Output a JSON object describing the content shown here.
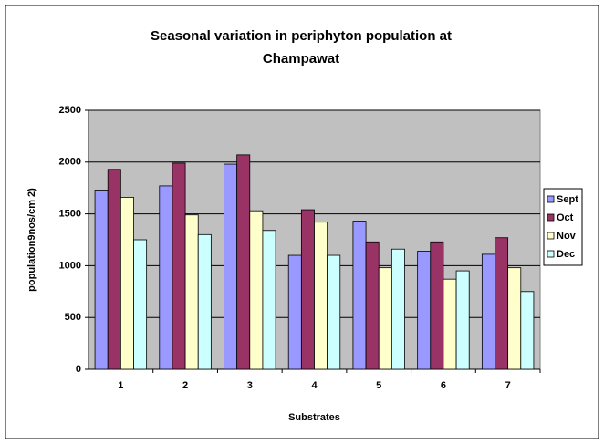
{
  "chart_data": {
    "type": "bar",
    "title": "Seasonal variation in periphyton population at Champawat",
    "x_label": "Substrates",
    "y_label": "population9nos/cm 2)",
    "categories": [
      "1",
      "2",
      "3",
      "4",
      "5",
      "6",
      "7"
    ],
    "series": [
      {
        "name": "Sept",
        "color": "#9999ff",
        "values": [
          1730,
          1770,
          1980,
          1100,
          1430,
          1140,
          1110
        ]
      },
      {
        "name": "Oct",
        "color": "#993366",
        "values": [
          1930,
          1990,
          2070,
          1540,
          1230,
          1230,
          1270
        ]
      },
      {
        "name": "Nov",
        "color": "#ffffcc",
        "values": [
          1660,
          1490,
          1530,
          1420,
          980,
          870,
          980
        ]
      },
      {
        "name": "Dec",
        "color": "#ccffff",
        "values": [
          1250,
          1300,
          1340,
          1100,
          1160,
          950,
          750
        ]
      }
    ],
    "ylim": [
      0,
      2500
    ],
    "yticks": [
      0,
      500,
      1000,
      1500,
      2000,
      2500
    ],
    "grid": true,
    "legend": "right",
    "plot_background": "#c0c0c0"
  }
}
